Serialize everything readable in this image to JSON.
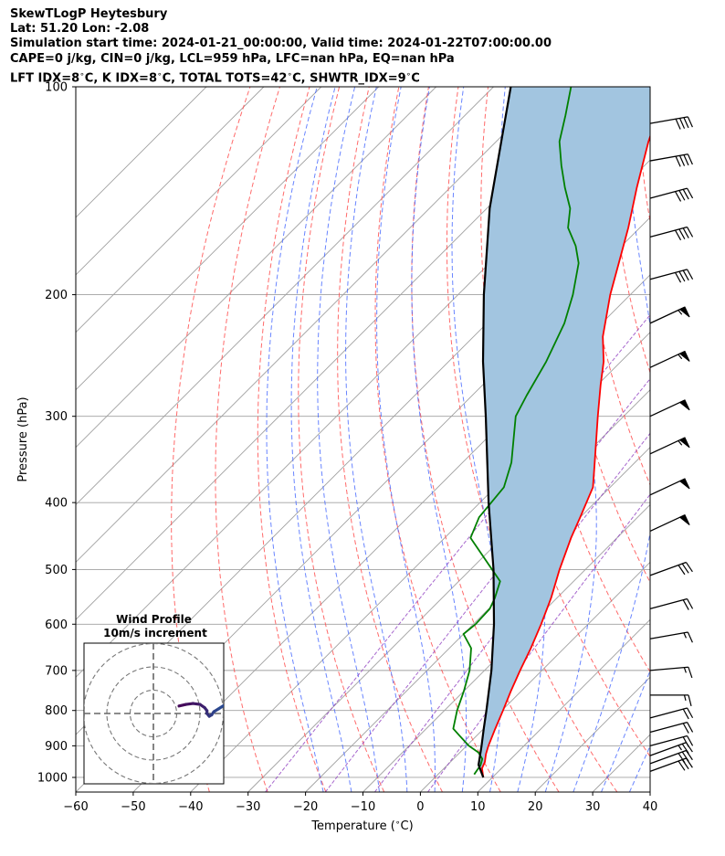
{
  "titles": {
    "line1": "SkewTLogP Heytesbury",
    "line2": "Lat: 51.20   Lon: -2.08",
    "line3": "Simulation start time: 2024-01-21_00:00:00, Valid time: 2024-01-22T07:00:00.00",
    "line4": "CAPE=0 j/kg, CIN=0 j/kg, LCL=959 hPa, LFC=nan hPa, EQ=nan hPa",
    "line5": "LFT IDX=8$^\\circ$C, K IDX=8$^\\circ$C, TOTAL TOTS=42$^\\circ$C, SHWTR_IDX=9$^\\circ$C"
  },
  "chart_data": {
    "type": "line",
    "title": "SkewTLogP Heytesbury",
    "xlabel": "Temperature ($^\\circ$C)",
    "ylabel": "Pressure (hPa)",
    "xlim": [
      -60,
      40
    ],
    "ylim": [
      1050,
      100
    ],
    "yscale": "log",
    "x_ticks": [
      -60,
      -50,
      -40,
      -30,
      -20,
      -10,
      0,
      10,
      20,
      30,
      40
    ],
    "y_ticks": [
      1000,
      900,
      800,
      700,
      600,
      500,
      400,
      300,
      200,
      100
    ],
    "grid": true,
    "series": [
      {
        "kind": "temperature",
        "color": "#ff0000",
        "points": [
          [
            1000,
            8.4
          ],
          [
            970,
            6.6
          ],
          [
            950,
            6.0
          ],
          [
            925,
            4.8
          ],
          [
            900,
            3.8
          ],
          [
            850,
            2.0
          ],
          [
            800,
            0.2
          ],
          [
            750,
            -1.8
          ],
          [
            700,
            -3.8
          ],
          [
            650,
            -5.8
          ],
          [
            600,
            -8.2
          ],
          [
            550,
            -11.0
          ],
          [
            500,
            -14.5
          ],
          [
            450,
            -18.0
          ],
          [
            420,
            -20.0
          ],
          [
            380,
            -23.0
          ],
          [
            350,
            -27.0
          ],
          [
            300,
            -34.5
          ],
          [
            270,
            -39.5
          ],
          [
            250,
            -43.0
          ],
          [
            230,
            -47.5
          ],
          [
            200,
            -53.5
          ],
          [
            180,
            -57.5
          ],
          [
            160,
            -62.0
          ],
          [
            140,
            -67.5
          ],
          [
            120,
            -73.5
          ],
          [
            110,
            -76.5
          ],
          [
            100,
            -80.0
          ]
        ]
      },
      {
        "kind": "dewpoint",
        "color": "#008000",
        "points": [
          [
            990,
            6.3
          ],
          [
            960,
            5.8
          ],
          [
            940,
            5.0
          ],
          [
            920,
            3.2
          ],
          [
            900,
            0.4
          ],
          [
            870,
            -3.0
          ],
          [
            850,
            -5.3
          ],
          [
            800,
            -7.8
          ],
          [
            750,
            -10.0
          ],
          [
            700,
            -12.6
          ],
          [
            650,
            -16.2
          ],
          [
            620,
            -20.0
          ],
          [
            600,
            -19.6
          ],
          [
            570,
            -19.8
          ],
          [
            550,
            -20.8
          ],
          [
            520,
            -22.8
          ],
          [
            450,
            -35.5
          ],
          [
            420,
            -37.6
          ],
          [
            380,
            -38.5
          ],
          [
            350,
            -41.5
          ],
          [
            300,
            -48.8
          ],
          [
            280,
            -50.5
          ],
          [
            250,
            -53.0
          ],
          [
            220,
            -56.5
          ],
          [
            200,
            -60.0
          ],
          [
            180,
            -64.5
          ],
          [
            170,
            -68.0
          ],
          [
            160,
            -72.5
          ],
          [
            150,
            -75.5
          ],
          [
            140,
            -80.0
          ],
          [
            130,
            -84.5
          ],
          [
            120,
            -89.0
          ],
          [
            110,
            -92.5
          ],
          [
            100,
            -96.5
          ]
        ]
      },
      {
        "kind": "parcel",
        "color": "#000000",
        "points": [
          [
            1000,
            8.4
          ],
          [
            959,
            5.4
          ],
          [
            900,
            2.6
          ],
          [
            850,
            0.0
          ],
          [
            800,
            -2.7
          ],
          [
            700,
            -8.8
          ],
          [
            600,
            -16.4
          ],
          [
            500,
            -26.0
          ],
          [
            400,
            -38.5
          ],
          [
            300,
            -54.0
          ],
          [
            250,
            -64.0
          ],
          [
            200,
            -75.5
          ],
          [
            150,
            -89.5
          ],
          [
            100,
            -107.0
          ]
        ]
      }
    ],
    "wind_barbs": [
      {
        "p": 980,
        "spd": 30,
        "dir": 250
      },
      {
        "p": 955,
        "spd": 30,
        "dir": 250
      },
      {
        "p": 930,
        "spd": 25,
        "dir": 250
      },
      {
        "p": 900,
        "spd": 20,
        "dir": 255
      },
      {
        "p": 860,
        "spd": 20,
        "dir": 255
      },
      {
        "p": 820,
        "spd": 20,
        "dir": 255
      },
      {
        "p": 760,
        "spd": 15,
        "dir": 270
      },
      {
        "p": 700,
        "spd": 15,
        "dir": 265
      },
      {
        "p": 630,
        "spd": 15,
        "dir": 260
      },
      {
        "p": 570,
        "spd": 20,
        "dir": 255
      },
      {
        "p": 510,
        "spd": 30,
        "dir": 250
      },
      {
        "p": 440,
        "spd": 50,
        "dir": 245
      },
      {
        "p": 390,
        "spd": 50,
        "dir": 245
      },
      {
        "p": 340,
        "spd": 55,
        "dir": 245
      },
      {
        "p": 300,
        "spd": 50,
        "dir": 245
      },
      {
        "p": 255,
        "spd": 55,
        "dir": 245
      },
      {
        "p": 220,
        "spd": 55,
        "dir": 245
      },
      {
        "p": 190,
        "spd": 40,
        "dir": 255
      },
      {
        "p": 165,
        "spd": 40,
        "dir": 255
      },
      {
        "p": 145,
        "spd": 40,
        "dir": 255
      },
      {
        "p": 128,
        "spd": 40,
        "dir": 260
      },
      {
        "p": 113,
        "spd": 40,
        "dir": 260
      }
    ],
    "hodograph": {
      "title": "Wind Profile",
      "subtitle": "10m/s increment",
      "rings": [
        10,
        20,
        30
      ],
      "points": [
        [
          11,
          3.2
        ],
        [
          14,
          3.9
        ],
        [
          17,
          4.3
        ],
        [
          20,
          3.9
        ],
        [
          22,
          2.5
        ],
        [
          23,
          1.2
        ],
        [
          23,
          0.0
        ],
        [
          24,
          -1.2
        ],
        [
          25,
          -0.6
        ],
        [
          26,
          0.8
        ],
        [
          28,
          2.0
        ],
        [
          30,
          3.3
        ]
      ]
    },
    "colors": {
      "temperature": "#ff0000",
      "dewpoint": "#008000",
      "parcel": "#000000",
      "cape_fill": "#a2c5e0",
      "dry_adiabat": "#ff5050",
      "moist_adiabat": "#4466ff",
      "mixing_ratio": "#9040c0",
      "isotherm": "#a0a0a0"
    }
  }
}
